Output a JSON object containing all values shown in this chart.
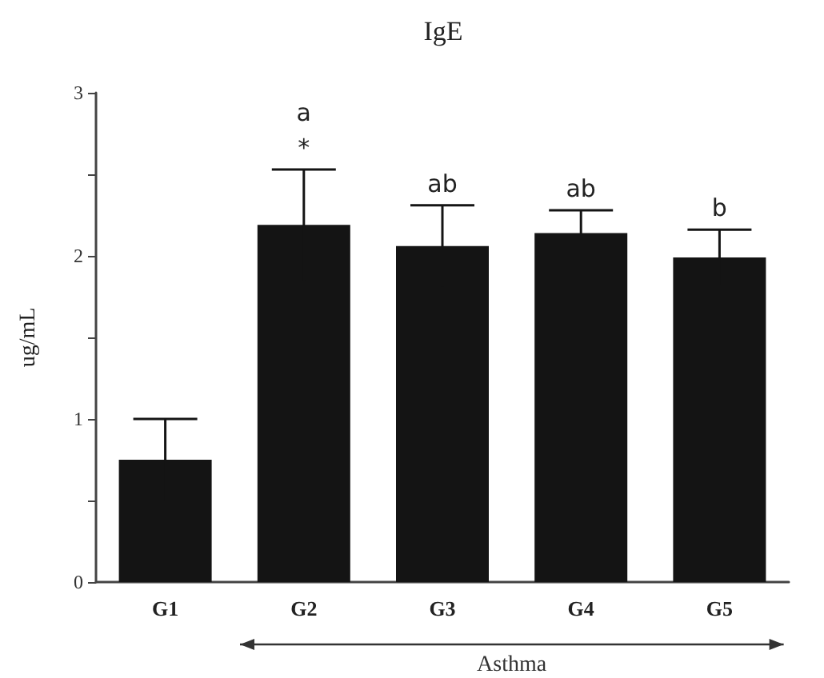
{
  "chart_data": {
    "type": "bar",
    "title": "IgE",
    "ylabel": "ug/mL",
    "categories": [
      "G1",
      "G2",
      "G3",
      "G4",
      "G5"
    ],
    "values": [
      0.75,
      2.19,
      2.06,
      2.14,
      1.99
    ],
    "errors": [
      0.25,
      0.34,
      0.25,
      0.14,
      0.17
    ],
    "color": "#141414",
    "ylim": [
      0,
      3
    ],
    "yticks": [
      0,
      {
        "value": 0.5,
        "label": null
      },
      1,
      {
        "value": 1.5,
        "label": null
      },
      2,
      {
        "value": 2.5,
        "label": null
      },
      3
    ],
    "grid": false,
    "annotations": [
      {
        "text": "a",
        "x": "G2",
        "y": 2.53
      },
      {
        "text": "*",
        "x": "G2",
        "y": 2.53
      },
      {
        "text": "ab",
        "x": "G3",
        "y": 2.31
      },
      {
        "text": "ab",
        "x": "G4",
        "y": 2.28
      },
      {
        "text": "b",
        "x": "G5",
        "y": 2.16
      },
      "Asthma"
    ]
  }
}
